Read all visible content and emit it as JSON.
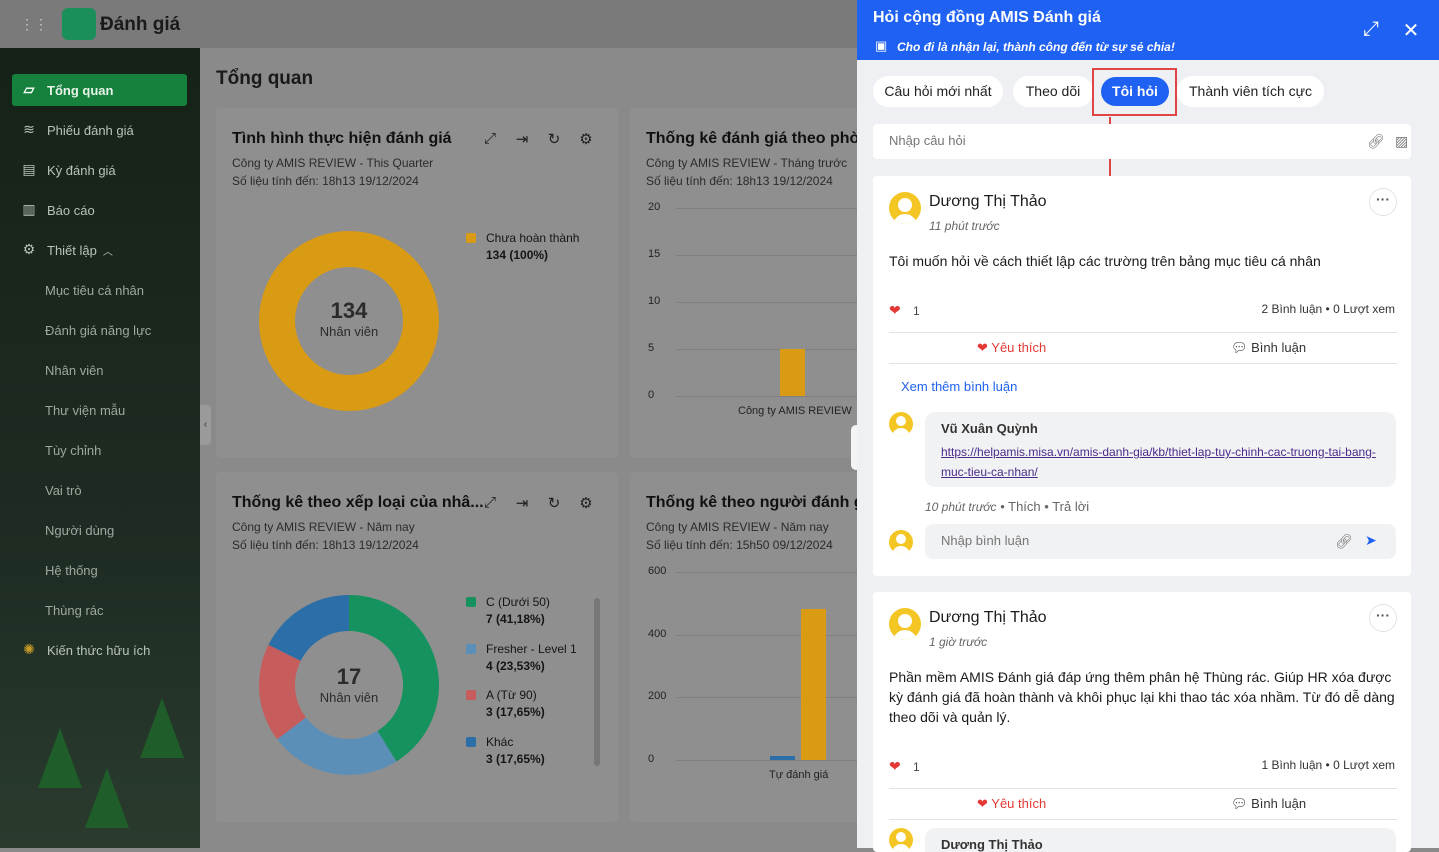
{
  "app": {
    "title": "Đánh giá"
  },
  "sidebar": {
    "items": [
      {
        "label": "Tổng quan",
        "icon": "chart-icon"
      },
      {
        "label": "Phiếu đánh giá",
        "icon": "layers-icon"
      },
      {
        "label": "Kỳ đánh giá",
        "icon": "clipboard-icon"
      },
      {
        "label": "Báo cáo",
        "icon": "bar-chart-icon"
      },
      {
        "label": "Thiết lập",
        "icon": "gear-icon"
      }
    ],
    "subitems": [
      "Mục tiêu cá nhân",
      "Đánh giá năng lực",
      "Nhân viên",
      "Thư viện mẫu",
      "Tùy chỉnh",
      "Vai trò",
      "Người dùng",
      "Hệ thống",
      "Thùng rác"
    ],
    "knowledge": "Kiến thức hữu ích"
  },
  "main": {
    "title": "Tổng quan"
  },
  "cards": {
    "c1": {
      "title": "Tình hình thực hiện đánh giá",
      "sub1": "Công ty AMIS REVIEW - This Quarter",
      "sub2": "Số liệu tính đến: 18h13 19/12/2024",
      "center_value": "134",
      "center_label": "Nhân viên"
    },
    "c2": {
      "title": "Thống kê đánh giá theo phòng",
      "sub1": "Công ty AMIS REVIEW - Tháng trước",
      "sub2": "Số liệu tính đến: 18h13 19/12/2024"
    },
    "c3": {
      "title": "Thống kê theo xếp loại của nhâ...",
      "sub1": "Công ty AMIS REVIEW - Năm nay",
      "sub2": "Số liệu tính đến: 18h13 19/12/2024",
      "center_value": "17",
      "center_label": "Nhân viên"
    },
    "c4": {
      "title": "Thống kê theo người đánh giá",
      "sub1": "Công ty AMIS REVIEW - Năm nay",
      "sub2": "Số liệu tính đến: 15h50 09/12/2024"
    }
  },
  "chart_data": [
    {
      "type": "pie",
      "title": "Tình hình thực hiện đánh giá",
      "categories": [
        "Chưa hoàn thành"
      ],
      "values": [
        134
      ],
      "labels": [
        "134 (100%)"
      ],
      "colors": [
        "#d99a14"
      ]
    },
    {
      "type": "bar",
      "title": "Thống kê đánh giá theo phòng",
      "categories": [
        "Công ty AMIS REVIEW"
      ],
      "values": [
        5
      ],
      "ylim": [
        0,
        20
      ],
      "yticks": [
        0,
        5,
        10,
        15,
        20
      ],
      "colors": [
        "#d99a14"
      ]
    },
    {
      "type": "pie",
      "title": "Thống kê theo xếp loại của nhâ...",
      "categories": [
        "C (Dưới 50)",
        "Fresher - Level 1",
        "A (Từ 90)",
        "Khác"
      ],
      "values": [
        7,
        4,
        3,
        3
      ],
      "labels": [
        "7 (41,18%)",
        "4 (23,53%)",
        "3 (17,65%)",
        "3 (17,65%)"
      ],
      "colors": [
        "#15925e",
        "#5c8fb8",
        "#c75c5c",
        "#2c6fa8"
      ]
    },
    {
      "type": "bar",
      "title": "Thống kê theo người đánh giá",
      "categories": [
        "Tự đánh giá"
      ],
      "series": [
        {
          "values": [
            12
          ]
        },
        {
          "values": [
            483
          ]
        }
      ],
      "ylim": [
        0,
        600
      ],
      "yticks": [
        0,
        200,
        400,
        600
      ],
      "colors": [
        "#2c6fa8",
        "#d99a14"
      ]
    }
  ],
  "panel": {
    "title": "Hỏi cộng đồng AMIS Đánh giá",
    "subtitle": "Cho đi là nhận lại, thành công đến từ sự sẻ chia!",
    "tabs": [
      "Câu hỏi mới nhất",
      "Theo dõi",
      "Tôi hỏi",
      "Thành viên tích cực"
    ],
    "ask_placeholder": "Nhập câu hỏi",
    "posts": [
      {
        "author": "Dương Thị Thảo",
        "time": "11 phút trước",
        "body": "Tôi muốn hỏi về cách thiết lập các trường trên bảng mục tiêu cá nhân",
        "likes": "1",
        "comments": "2 Bình luận",
        "views": "0 Lượt xem",
        "like_label": "Yêu thích",
        "comment_label": "Bình luận",
        "see_more": "Xem thêm bình luận",
        "comment": {
          "author": "Vũ Xuân Quỳnh",
          "link": "https://helpamis.misa.vn/amis-danh-gia/kb/thiet-lap-tuy-chinh-cac-truong-tai-bang-muc-tieu-ca-nhan/",
          "time": "10 phút trước",
          "like": "Thích",
          "reply": "Trả lời"
        },
        "comment_placeholder": "Nhập bình luận"
      },
      {
        "author": "Dương Thị Thảo",
        "time": "1 giờ trước",
        "body": "Phần mềm AMIS Đánh giá đáp ứng thêm phân hệ Thùng rác. Giúp HR xóa được kỳ đánh giá đã hoàn thành và khôi phục lại khi thao tác xóa nhầm. Từ đó dễ dàng theo dõi và quản lý.",
        "likes": "1",
        "comments": "1 Bình luận",
        "views": "0 Lượt xem",
        "like_label": "Yêu thích",
        "comment_label": "Bình luận",
        "comment": {
          "author": "Dương Thị Thảo"
        }
      }
    ]
  }
}
